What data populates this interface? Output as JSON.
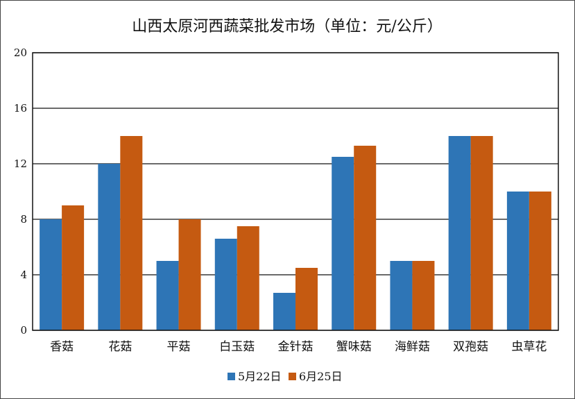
{
  "chart_data": {
    "type": "bar",
    "title": "山西太原河西蔬菜批发市场（单位：元/公斤）",
    "categories": [
      "香菇",
      "花菇",
      "平菇",
      "白玉菇",
      "金针菇",
      "蟹味菇",
      "海鲜菇",
      "双孢菇",
      "虫草花"
    ],
    "series": [
      {
        "name": "5月22日",
        "color": "#2e75b6",
        "values": [
          8,
          12,
          5,
          6.6,
          2.7,
          12.5,
          5,
          14,
          10
        ]
      },
      {
        "name": "6月25日",
        "color": "#c55a11",
        "values": [
          9,
          14,
          8,
          7.5,
          4.5,
          13.3,
          5,
          14,
          10
        ]
      }
    ],
    "ylim": [
      0,
      20
    ],
    "yticks": [
      "0",
      "4",
      "8",
      "12",
      "16",
      "20"
    ],
    "grid": true,
    "legend_position": "bottom"
  }
}
